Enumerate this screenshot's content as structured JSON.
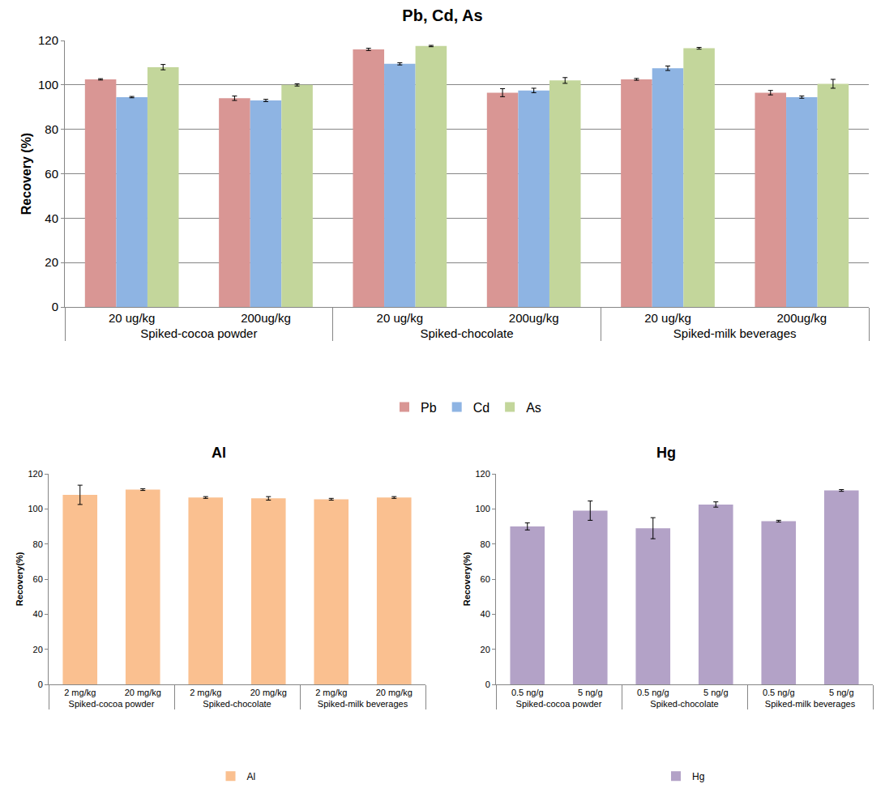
{
  "chart_data": [
    {
      "type": "bar",
      "title": "Pb, Cd, As",
      "y_label": "Recovery (%)",
      "categories": [
        [
          "Spiked-cocoa powder",
          "20 ug/kg"
        ],
        [
          "Spiked-cocoa powder",
          "200ug/kg"
        ],
        [
          "Spiked-chocolate",
          "20 ug/kg"
        ],
        [
          "Spiked-chocolate",
          "200ug/kg"
        ],
        [
          "Spiked-milk beverages",
          "20 ug/kg"
        ],
        [
          "Spiked-milk beverages",
          "200ug/kg"
        ]
      ],
      "series": [
        {
          "name": "Pb",
          "color": "#d99694",
          "values": [
            102.5,
            94,
            116,
            96.5,
            102.5,
            96.5
          ],
          "errors": [
            0.3,
            1,
            0.5,
            1.8,
            0.4,
            1
          ]
        },
        {
          "name": "Cd",
          "color": "#8eb4e3",
          "values": [
            94.5,
            93,
            109.5,
            97.5,
            107.5,
            94.5
          ],
          "errors": [
            0.3,
            0.5,
            0.5,
            1,
            1,
            0.5
          ]
        },
        {
          "name": "As",
          "color": "#c3d69b",
          "values": [
            108,
            100,
            117.5,
            102,
            116.5,
            100.5
          ],
          "errors": [
            1.2,
            0.5,
            0.3,
            1.3,
            0.4,
            2
          ]
        }
      ],
      "ylim": [
        0,
        120
      ],
      "yticks": [
        0,
        20,
        40,
        60,
        80,
        100,
        120
      ],
      "grid": true,
      "legend": "bottom"
    },
    {
      "type": "bar",
      "title": "Al",
      "y_label": "Recovery(%)",
      "categories": [
        [
          "Spiked-cocoa powder",
          "2 mg/kg"
        ],
        [
          "Spiked-cocoa powder",
          "20 mg/kg"
        ],
        [
          "Spiked-chocolate",
          "2 mg/kg"
        ],
        [
          "Spiked-chocolate",
          "20 mg/kg"
        ],
        [
          "Spiked-milk beverages",
          "2 mg/kg"
        ],
        [
          "Spiked-milk beverages",
          "20 mg/kg"
        ]
      ],
      "series": [
        {
          "name": "Al",
          "color": "#fac090",
          "values": [
            108,
            111,
            106.5,
            106,
            105.5,
            106.5
          ],
          "errors": [
            5.5,
            0.5,
            0.5,
            1,
            0.5,
            0.5
          ]
        }
      ],
      "ylim": [
        0,
        120
      ],
      "yticks": [
        0,
        20,
        40,
        60,
        80,
        100,
        120
      ],
      "grid": false,
      "legend": "bottom"
    },
    {
      "type": "bar",
      "title": "Hg",
      "y_label": "Recovery(%)",
      "categories": [
        [
          "Spiked-cocoa powder",
          "0.5 ng/g"
        ],
        [
          "Spiked-cocoa powder",
          "5 ng/g"
        ],
        [
          "Spiked-chocolate",
          "0.5 ng/g"
        ],
        [
          "Spiked-chocolate",
          "5 ng/g"
        ],
        [
          "Spiked-milk beverages",
          "0.5 ng/g"
        ],
        [
          "Spiked-milk beverages",
          "5 ng/g"
        ]
      ],
      "series": [
        {
          "name": "Hg",
          "color": "#b3a2c7",
          "values": [
            90,
            99,
            89,
            102.5,
            93,
            110.5
          ],
          "errors": [
            2,
            5.5,
            6,
            1.5,
            0.5,
            0.5
          ]
        }
      ],
      "ylim": [
        0,
        120
      ],
      "yticks": [
        0,
        20,
        40,
        60,
        80,
        100,
        120
      ],
      "grid": false,
      "legend": "bottom"
    }
  ]
}
